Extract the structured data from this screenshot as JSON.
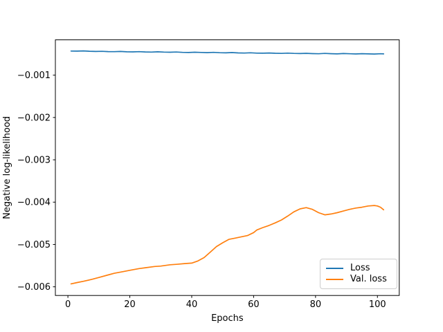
{
  "figure": {
    "background": "#ffffff"
  },
  "chart_data": {
    "type": "line",
    "title": "",
    "xlabel": "Epochs",
    "ylabel": "Negative log-likelihood",
    "xlim": [
      -4.05,
      107.05
    ],
    "ylim": [
      -0.006205,
      -0.000166
    ],
    "grid": false,
    "axis_color": "#000000",
    "legend": {
      "position": "lower right",
      "border_color": "#cccccc",
      "background": "#ffffff"
    },
    "xticks": {
      "values": [
        0,
        20,
        40,
        60,
        80,
        100
      ],
      "labels": [
        "0",
        "20",
        "40",
        "60",
        "80",
        "100"
      ]
    },
    "yticks": {
      "values": [
        -0.001,
        -0.002,
        -0.003,
        -0.004,
        -0.005,
        -0.006
      ],
      "labels": [
        "−0.001",
        "−0.002",
        "−0.003",
        "−0.004",
        "−0.005",
        "−0.006"
      ]
    },
    "series": [
      {
        "name": "Loss",
        "color": "#1f77b4",
        "x": [
          1,
          3,
          5,
          7,
          9,
          11,
          13,
          15,
          17,
          19,
          21,
          23,
          25,
          27,
          29,
          31,
          33,
          35,
          37,
          39,
          41,
          43,
          45,
          47,
          49,
          51,
          53,
          55,
          57,
          59,
          61,
          63,
          65,
          67,
          69,
          71,
          73,
          75,
          77,
          79,
          81,
          83,
          85,
          87,
          89,
          91,
          93,
          95,
          97,
          99,
          101,
          102
        ],
        "y": [
          -0.00043,
          -0.000432,
          -0.000428,
          -0.000436,
          -0.00044,
          -0.000437,
          -0.000443,
          -0.000446,
          -0.00044,
          -0.000448,
          -0.00045,
          -0.000445,
          -0.000452,
          -0.000455,
          -0.000449,
          -0.000456,
          -0.000459,
          -0.000454,
          -0.000461,
          -0.000465,
          -0.000458,
          -0.000463,
          -0.000468,
          -0.000462,
          -0.00047,
          -0.000473,
          -0.000467,
          -0.000475,
          -0.000478,
          -0.000472,
          -0.000479,
          -0.000482,
          -0.000476,
          -0.000483,
          -0.000487,
          -0.00048,
          -0.000486,
          -0.00049,
          -0.000484,
          -0.000491,
          -0.000494,
          -0.000487,
          -0.000493,
          -0.000497,
          -0.00049,
          -0.000495,
          -0.000499,
          -0.000492,
          -0.000497,
          -0.000501,
          -0.000495,
          -0.000498
        ]
      },
      {
        "name": "Val. loss",
        "color": "#ff7f0e",
        "x": [
          1,
          3,
          5,
          8,
          10,
          13,
          15,
          18,
          20,
          23,
          25,
          28,
          30,
          33,
          35,
          38,
          40,
          42,
          44,
          46,
          48,
          50,
          52,
          54,
          56,
          58,
          60,
          61,
          63,
          65,
          67,
          69,
          71,
          73,
          75,
          77,
          79,
          81,
          83,
          85,
          87,
          89,
          91,
          93,
          95,
          97,
          99,
          100,
          101,
          102
        ],
        "y": [
          -0.00593,
          -0.0059,
          -0.00587,
          -0.00582,
          -0.00578,
          -0.00572,
          -0.00568,
          -0.00564,
          -0.00561,
          -0.00557,
          -0.00555,
          -0.00552,
          -0.00551,
          -0.00548,
          -0.00547,
          -0.00545,
          -0.00544,
          -0.00539,
          -0.00531,
          -0.00518,
          -0.00505,
          -0.00496,
          -0.00488,
          -0.00485,
          -0.00482,
          -0.00479,
          -0.00472,
          -0.00466,
          -0.0046,
          -0.00455,
          -0.00449,
          -0.00442,
          -0.00433,
          -0.00423,
          -0.00416,
          -0.00413,
          -0.00417,
          -0.00425,
          -0.0043,
          -0.00428,
          -0.00425,
          -0.00421,
          -0.00417,
          -0.00414,
          -0.00412,
          -0.00409,
          -0.00408,
          -0.00409,
          -0.00412,
          -0.00418
        ]
      }
    ]
  }
}
